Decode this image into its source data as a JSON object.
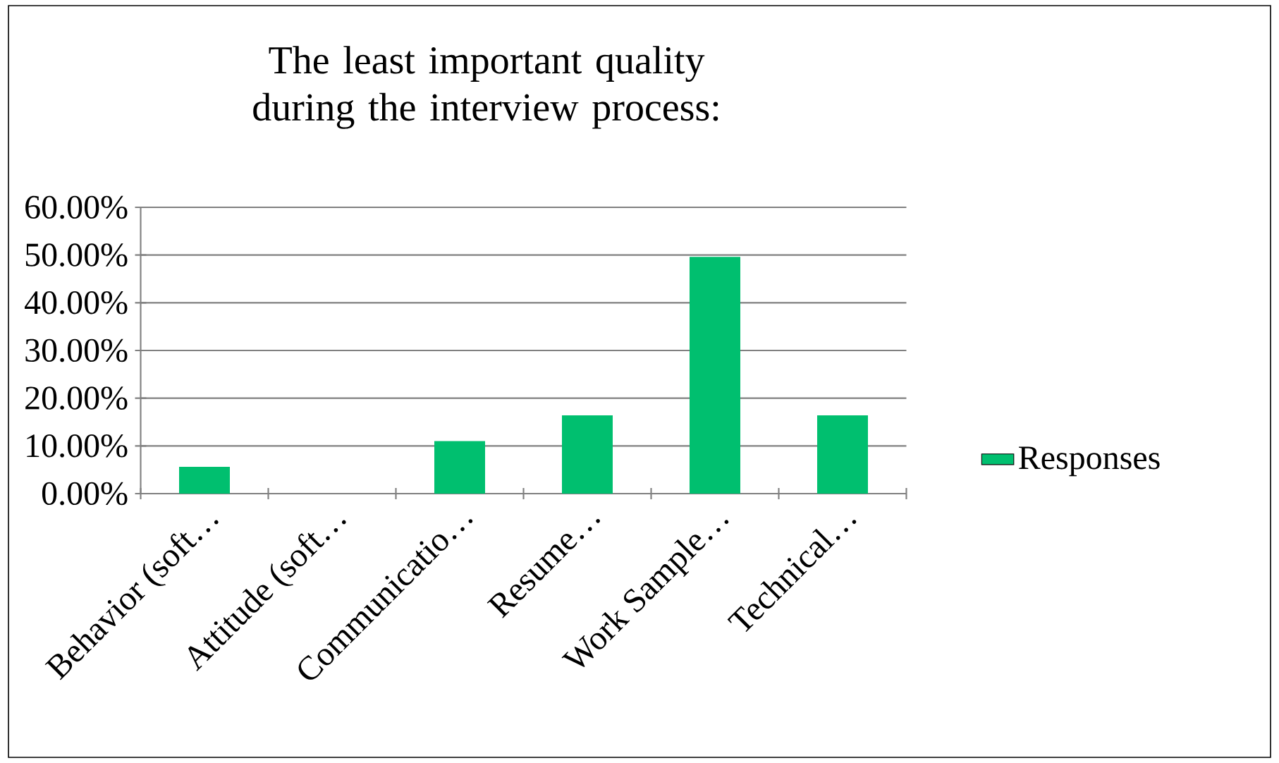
{
  "chart_data": {
    "type": "bar",
    "title": "The least important quality during the interview process:",
    "categories": [
      "Behavior (soft…",
      "Attitude (soft…",
      "Communicatio…",
      "Resume…",
      "Work Sample…",
      "Technical…"
    ],
    "series": [
      {
        "name": "Responses",
        "color": "#00bf6f",
        "values": [
          5.6,
          0,
          11.0,
          16.4,
          49.6,
          16.4
        ]
      }
    ],
    "ylim": [
      0,
      60
    ],
    "yticks": [
      {
        "value": 0,
        "label": "0.00%"
      },
      {
        "value": 10,
        "label": "10.00%"
      },
      {
        "value": 20,
        "label": "20.00%"
      },
      {
        "value": 30,
        "label": "30.00%"
      },
      {
        "value": 40,
        "label": "40.00%"
      },
      {
        "value": 50,
        "label": "50.00%"
      },
      {
        "value": 60,
        "label": "60.00%"
      }
    ],
    "grid": "y",
    "legend": "right"
  }
}
